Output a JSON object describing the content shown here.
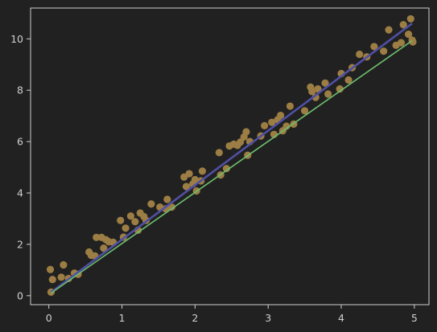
{
  "chart_data": {
    "type": "scatter",
    "title": "",
    "xlabel": "",
    "ylabel": "",
    "xlim": [
      -0.25,
      5.2
    ],
    "ylim": [
      -0.35,
      11.2
    ],
    "xticks": [
      0,
      1,
      2,
      3,
      4,
      5
    ],
    "yticks": [
      0,
      2,
      4,
      6,
      8,
      10
    ],
    "grid": false,
    "legend": "none",
    "colors": {
      "background": "#212121",
      "axes": "#cfcfcf",
      "points": "#9c7e45",
      "line_fit": "#4f4fa3",
      "line_true": "#6dbf6d"
    },
    "scatter_points": [
      [
        0.02,
        1.02
      ],
      [
        0.05,
        0.63
      ],
      [
        0.03,
        0.14
      ],
      [
        0.2,
        1.2
      ],
      [
        0.17,
        0.72
      ],
      [
        0.27,
        0.67
      ],
      [
        0.35,
        0.88
      ],
      [
        0.4,
        0.83
      ],
      [
        0.55,
        1.7
      ],
      [
        0.58,
        1.57
      ],
      [
        0.63,
        1.55
      ],
      [
        0.65,
        2.27
      ],
      [
        0.72,
        2.27
      ],
      [
        0.75,
        1.85
      ],
      [
        0.78,
        2.18
      ],
      [
        0.82,
        2.1
      ],
      [
        0.88,
        2.08
      ],
      [
        0.98,
        2.93
      ],
      [
        1.02,
        2.28
      ],
      [
        1.05,
        2.63
      ],
      [
        1.12,
        3.1
      ],
      [
        1.18,
        2.88
      ],
      [
        1.22,
        2.55
      ],
      [
        1.25,
        3.22
      ],
      [
        1.3,
        3.08
      ],
      [
        1.33,
        2.93
      ],
      [
        1.4,
        3.57
      ],
      [
        1.52,
        3.45
      ],
      [
        1.6,
        3.38
      ],
      [
        1.62,
        3.75
      ],
      [
        1.68,
        3.45
      ],
      [
        1.85,
        4.62
      ],
      [
        1.88,
        4.25
      ],
      [
        1.92,
        4.75
      ],
      [
        1.97,
        4.35
      ],
      [
        2.0,
        4.52
      ],
      [
        2.02,
        4.08
      ],
      [
        2.08,
        4.47
      ],
      [
        2.1,
        4.85
      ],
      [
        2.33,
        5.57
      ],
      [
        2.35,
        4.7
      ],
      [
        2.43,
        4.95
      ],
      [
        2.47,
        5.83
      ],
      [
        2.53,
        5.9
      ],
      [
        2.58,
        5.85
      ],
      [
        2.62,
        5.98
      ],
      [
        2.67,
        6.18
      ],
      [
        2.7,
        6.38
      ],
      [
        2.72,
        5.47
      ],
      [
        2.75,
        6.0
      ],
      [
        2.9,
        6.22
      ],
      [
        2.95,
        6.62
      ],
      [
        3.05,
        6.75
      ],
      [
        3.08,
        6.28
      ],
      [
        3.13,
        6.85
      ],
      [
        3.17,
        7.02
      ],
      [
        3.2,
        6.42
      ],
      [
        3.25,
        6.6
      ],
      [
        3.3,
        7.38
      ],
      [
        3.35,
        6.68
      ],
      [
        3.5,
        7.2
      ],
      [
        3.58,
        8.12
      ],
      [
        3.6,
        7.95
      ],
      [
        3.65,
        7.72
      ],
      [
        3.68,
        8.05
      ],
      [
        3.78,
        8.28
      ],
      [
        3.82,
        7.85
      ],
      [
        3.98,
        8.05
      ],
      [
        4.0,
        8.65
      ],
      [
        4.1,
        8.4
      ],
      [
        4.15,
        8.88
      ],
      [
        4.25,
        9.4
      ],
      [
        4.35,
        9.3
      ],
      [
        4.45,
        9.7
      ],
      [
        4.58,
        9.52
      ],
      [
        4.65,
        10.35
      ],
      [
        4.75,
        9.75
      ],
      [
        4.82,
        9.85
      ],
      [
        4.85,
        10.55
      ],
      [
        4.92,
        10.18
      ],
      [
        4.95,
        10.78
      ],
      [
        4.97,
        9.95
      ],
      [
        4.98,
        9.88
      ]
    ],
    "lines": [
      {
        "x": [
          0.03,
          4.97
        ],
        "y": [
          0.13,
          10.6
        ],
        "color": "#4f4fa3",
        "width": 2.6
      },
      {
        "x": [
          0.03,
          4.97
        ],
        "y": [
          0.1,
          9.93
        ],
        "color": "#6dbf6d",
        "width": 1.6
      }
    ]
  }
}
